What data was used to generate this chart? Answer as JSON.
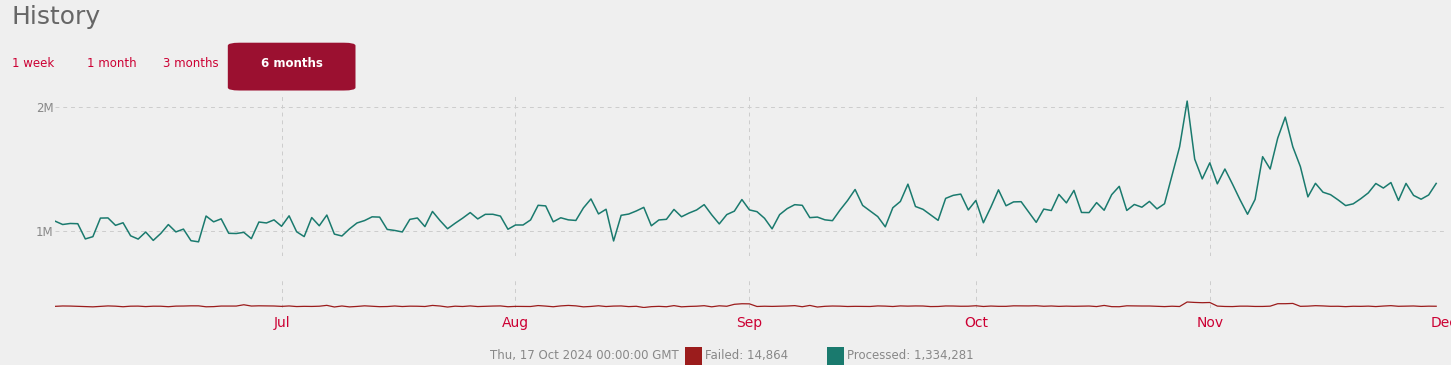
{
  "title": "History",
  "bg_color": "#efefef",
  "plot_bg_color": "#efefef",
  "teal_color": "#1a7a6e",
  "red_color": "#9b1c1c",
  "grid_color": "#cccccc",
  "title_color": "#555555",
  "axis_label_color": "#cc0033",
  "button_color": "#9b1030",
  "yticks": [
    1000000,
    2000000
  ],
  "ytick_labels": [
    "1M",
    "2M"
  ],
  "ylim_main": [
    800000,
    2100000
  ],
  "ylim_failed": [
    0,
    200000
  ],
  "xlim_days": [
    0,
    184
  ],
  "month_positions": [
    30,
    61,
    92,
    122,
    153,
    184
  ],
  "month_labels": [
    "Jul",
    "Aug",
    "Sep",
    "Oct",
    "Nov",
    "Dec"
  ],
  "nav_labels": [
    "1 week",
    "1 month",
    "3 months",
    "6 months"
  ],
  "footer_text": "Thu, 17 Oct 2024 00:00:00 GMT",
  "failed_label": "Failed: 14,864",
  "processed_label": "Processed: 1,334,281",
  "legend_teal": "#1a7a6e",
  "legend_red": "#9b1c1c"
}
